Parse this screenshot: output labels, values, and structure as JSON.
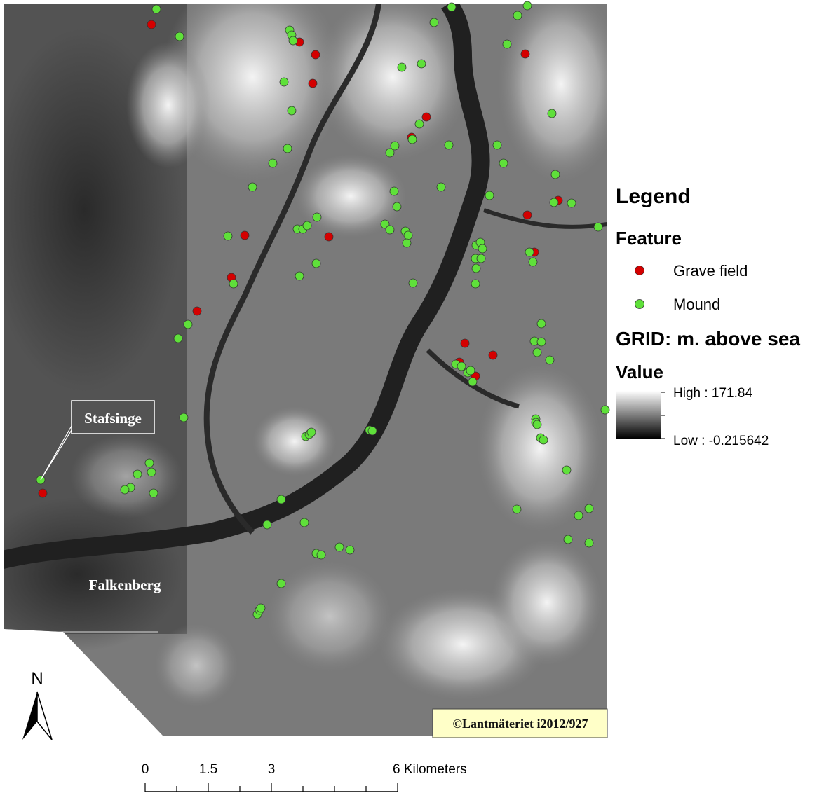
{
  "map": {
    "labels": [
      "Stafsinge",
      "Falkenberg"
    ],
    "copyright": "©Lantmäteriet i2012/927",
    "north": "N"
  },
  "legend": {
    "title": "Legend",
    "feature_heading": "Feature",
    "items": [
      {
        "label": "Grave field",
        "color": "#d40000"
      },
      {
        "label": "Mound",
        "color": "#5fe03a"
      }
    ],
    "grid_heading": "GRID: m. above sea",
    "value_heading": "Value",
    "high": "High : 171.84",
    "low": "Low : -0.215642"
  },
  "scale_bar": {
    "labels": [
      "0",
      "1.5",
      "3",
      "6 Kilometers"
    ]
  }
}
